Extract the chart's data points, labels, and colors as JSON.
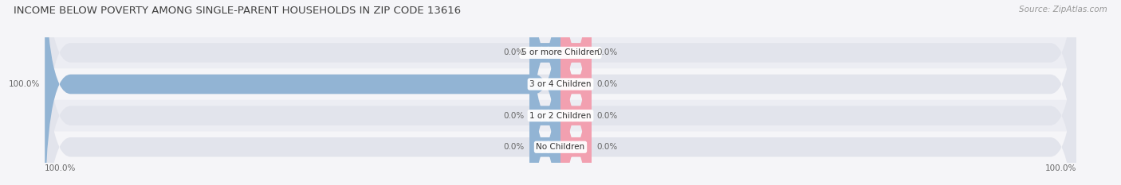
{
  "title": "INCOME BELOW POVERTY AMONG SINGLE-PARENT HOUSEHOLDS IN ZIP CODE 13616",
  "source": "Source: ZipAtlas.com",
  "categories": [
    "No Children",
    "1 or 2 Children",
    "3 or 4 Children",
    "5 or more Children"
  ],
  "single_father": [
    0.0,
    0.0,
    100.0,
    0.0
  ],
  "single_mother": [
    0.0,
    0.0,
    0.0,
    0.0
  ],
  "father_color": "#92b4d4",
  "mother_color": "#f2a0b0",
  "bar_bg_color": "#e2e4ec",
  "row_alt_color": "#ecedf3",
  "background_color": "#f5f5f8",
  "title_color": "#404040",
  "source_color": "#999999",
  "label_color": "#666666",
  "cat_label_color": "#333333",
  "max_val": 100.0,
  "stub_size": 6.0,
  "title_fontsize": 9.5,
  "source_fontsize": 7.5,
  "value_fontsize": 7.5,
  "category_fontsize": 7.5,
  "legend_fontsize": 7.5,
  "axis_left_label": "100.0%",
  "axis_right_label": "100.0%"
}
